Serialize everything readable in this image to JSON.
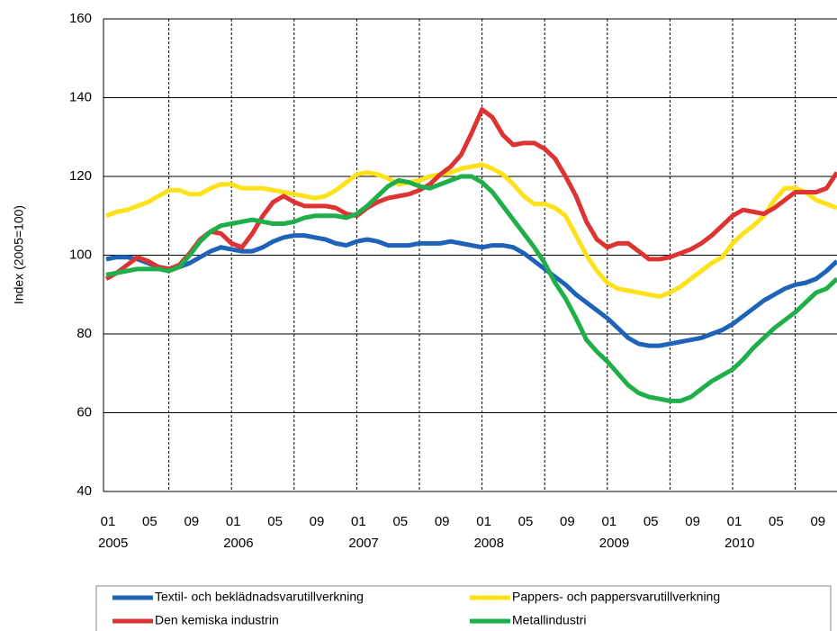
{
  "chart_data": {
    "type": "line",
    "y_label": "Index (2005=100)",
    "categories": [
      "01",
      null,
      null,
      null,
      "05",
      null,
      null,
      null,
      "09",
      null,
      null,
      null,
      "01",
      null,
      null,
      null,
      "05",
      null,
      null,
      null,
      "09",
      null,
      null,
      null,
      "01",
      null,
      null,
      null,
      "05",
      null,
      null,
      null,
      "09",
      null,
      null,
      null,
      "01",
      null,
      null,
      null,
      "05",
      null,
      null,
      null,
      "09",
      null,
      null,
      null,
      "01",
      null,
      null,
      null,
      "05",
      null,
      null,
      null,
      "09",
      null,
      null,
      null,
      "01",
      null,
      null,
      null,
      "05",
      null,
      null,
      null,
      "09",
      null,
      null
    ],
    "years": [
      "2005",
      "2006",
      "2007",
      "2008",
      "2009",
      "2010"
    ],
    "ylim": [
      40,
      160
    ],
    "yticks": [
      40,
      60,
      80,
      100,
      120,
      140,
      160
    ],
    "grid": true,
    "series": [
      {
        "name": "Textil- och beklädnadsvarutillverkning",
        "color": "#1f63b8",
        "values": [
          99,
          99.5,
          99.5,
          99,
          98,
          97,
          96.5,
          97,
          98,
          99.5,
          101,
          102,
          101.5,
          101,
          101,
          102,
          103.5,
          104.5,
          105,
          105,
          104.5,
          104,
          103,
          102.5,
          103.5,
          104,
          103.5,
          102.5,
          102.5,
          102.5,
          103,
          103,
          103,
          103.5,
          103,
          102.5,
          102,
          102.5,
          102.5,
          102,
          100.5,
          98.5,
          96.5,
          94.5,
          92.5,
          90,
          88,
          86,
          84,
          81.5,
          79,
          77.5,
          77,
          77,
          77.5,
          78,
          78.5,
          79,
          80,
          81,
          82.5,
          84.5,
          86.5,
          88.5,
          90,
          91.5,
          92.5,
          93,
          94,
          96,
          98.5
        ]
      },
      {
        "name": "Pappers- och pappersvarutillverkning",
        "color": "#ffe11a",
        "values": [
          110,
          111,
          111.5,
          112.5,
          113.5,
          115,
          116.5,
          116.5,
          115.5,
          115.5,
          117,
          118,
          118,
          117,
          117,
          117,
          116.5,
          116,
          115.5,
          115,
          114.5,
          115,
          116.5,
          118.5,
          120.5,
          121,
          120.5,
          119.5,
          118,
          118.5,
          119,
          120,
          120.5,
          121,
          122,
          122.5,
          123,
          122,
          120.5,
          118,
          115,
          113,
          113,
          112,
          110,
          105,
          100,
          96,
          93,
          91.5,
          91,
          90.5,
          90,
          89.5,
          90.5,
          92,
          94,
          96,
          98,
          99.5,
          103,
          105.5,
          107.5,
          110,
          114,
          117,
          117,
          116,
          114,
          113,
          112
        ]
      },
      {
        "name": "Den kemiska industrin",
        "color": "#dd3333",
        "values": [
          94,
          95.5,
          97.5,
          99.5,
          98.5,
          97,
          96.5,
          97.5,
          100.5,
          104,
          106,
          105.5,
          103,
          102,
          105.5,
          110,
          113.5,
          115,
          113.5,
          112.5,
          112.5,
          112.5,
          112,
          110.5,
          110,
          112,
          113.5,
          114.5,
          115,
          115.5,
          116.5,
          118,
          120.5,
          122.5,
          125.5,
          131,
          137,
          135,
          130.5,
          128,
          128.5,
          128.5,
          127,
          124.5,
          120,
          115,
          108.5,
          104,
          102,
          103,
          103,
          101,
          99,
          99,
          99.5,
          100.5,
          101.5,
          103,
          105,
          107.5,
          110,
          111.5,
          111,
          110.5,
          112,
          114,
          116,
          116,
          116,
          117,
          121
        ]
      },
      {
        "name": "Metallindustri",
        "color": "#1fae4a",
        "values": [
          95,
          95.5,
          96,
          96.5,
          96.5,
          96.5,
          96,
          97,
          100,
          103.5,
          106,
          107.5,
          108,
          108.5,
          109,
          108.5,
          108,
          108,
          108.5,
          109.5,
          110,
          110,
          110,
          109.5,
          110.5,
          112.5,
          115,
          117.5,
          119,
          118.5,
          117.5,
          117,
          118,
          119,
          120,
          120,
          118.5,
          116,
          112.5,
          109,
          105.5,
          102,
          98,
          93,
          89,
          84,
          78.5,
          75.5,
          73,
          70,
          67,
          65,
          64,
          63.5,
          63,
          63,
          64,
          66,
          68,
          69.5,
          71,
          73.5,
          76.5,
          79,
          81.5,
          83.5,
          85.5,
          88,
          90.5,
          91.5,
          94
        ]
      }
    ]
  }
}
